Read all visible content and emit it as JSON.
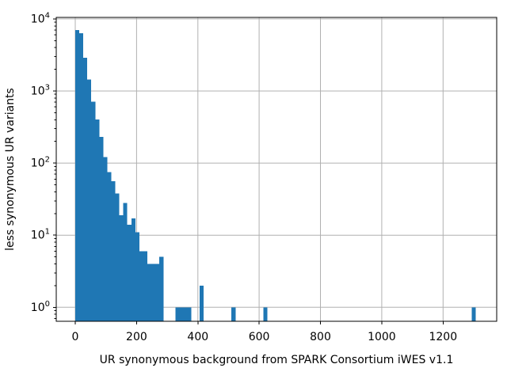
{
  "figure": {
    "background": "#ffffff"
  },
  "chart_data": {
    "type": "bar",
    "subtype": "histogram",
    "title": "",
    "xlabel": "UR synonymous background from SPARK Consortium iWES v1.1",
    "ylabel": "less synonymous UR variants",
    "yscale": "log",
    "grid": true,
    "bin_start": 0,
    "bin_width": 13.07,
    "counts": [
      7000,
      6300,
      2900,
      1450,
      715,
      405,
      230,
      122,
      75,
      56,
      38,
      19,
      28,
      14,
      17,
      11,
      6,
      6,
      4,
      4,
      4,
      5,
      0,
      0,
      0,
      1,
      1,
      1,
      1,
      0,
      0,
      2,
      0,
      0,
      0,
      0,
      0,
      0,
      0,
      1,
      0,
      0,
      0,
      0,
      0,
      0,
      0,
      1,
      0,
      0,
      0,
      0,
      0,
      0,
      0,
      0,
      0,
      0,
      0,
      0,
      0,
      0,
      0,
      0,
      0,
      0,
      0,
      0,
      0,
      0,
      0,
      0,
      0,
      0,
      0,
      0,
      0,
      0,
      0,
      0,
      0,
      0,
      0,
      0,
      0,
      0,
      0,
      0,
      0,
      0,
      0,
      0,
      0,
      0,
      0,
      0,
      0,
      0,
      0,
      1
    ],
    "x_ticks": [
      0,
      200,
      400,
      600,
      800,
      1000,
      1200
    ],
    "y_tick_exponents": [
      0,
      1,
      2,
      3,
      4
    ],
    "xlim": [
      -62,
      1375
    ],
    "ylim": [
      0.64,
      10500
    ],
    "bar_color": "#1f77b4",
    "grid_color": "#b0b0b0",
    "axis_color": "#000000",
    "text_color": "#000000"
  }
}
